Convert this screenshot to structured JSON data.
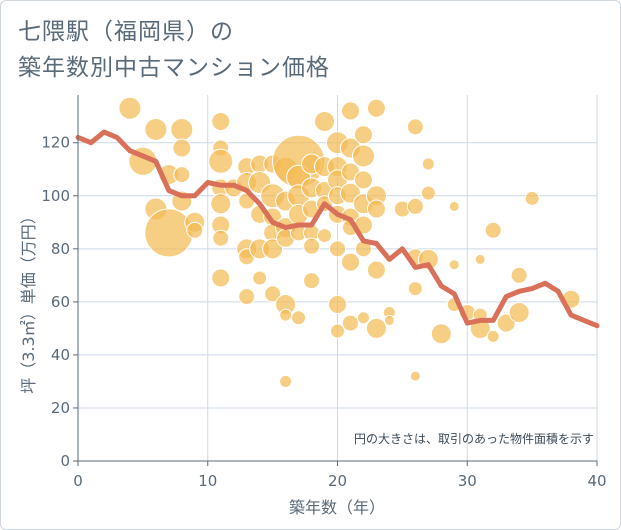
{
  "header": {
    "title_line1": "七隈駅（福岡県）の",
    "title_line2": "築年数別中古マンション価格"
  },
  "chart_data": {
    "type": "scatter",
    "title": "七隈駅（福岡県）の 築年数別中古マンション価格",
    "xlabel": "築年数（年）",
    "ylabel": "坪（3.3㎡）単価（万円）",
    "xlim": [
      0,
      40
    ],
    "ylim": [
      0,
      138
    ],
    "xticks": [
      0,
      10,
      20,
      30,
      40
    ],
    "yticks": [
      0,
      20,
      40,
      60,
      80,
      100,
      120
    ],
    "grid": true,
    "note": "円の大きさは、取引のあった物件面積を示す",
    "colors": {
      "bubble": "#f3bb55",
      "line": "#d9705a",
      "grid": "#ccd9e6",
      "axis": "#5a6a78"
    },
    "bubbles": [
      {
        "x": 4,
        "y": 133,
        "r": 11
      },
      {
        "x": 5,
        "y": 113,
        "r": 14
      },
      {
        "x": 6,
        "y": 125,
        "r": 11
      },
      {
        "x": 6,
        "y": 95,
        "r": 11
      },
      {
        "x": 7,
        "y": 86,
        "r": 24
      },
      {
        "x": 7,
        "y": 108,
        "r": 10
      },
      {
        "x": 8,
        "y": 125,
        "r": 11
      },
      {
        "x": 8,
        "y": 118,
        "r": 9
      },
      {
        "x": 8,
        "y": 108,
        "r": 8
      },
      {
        "x": 8,
        "y": 98,
        "r": 10
      },
      {
        "x": 9,
        "y": 90,
        "r": 10
      },
      {
        "x": 9,
        "y": 87,
        "r": 8
      },
      {
        "x": 11,
        "y": 128,
        "r": 9
      },
      {
        "x": 11,
        "y": 118,
        "r": 8
      },
      {
        "x": 11,
        "y": 113,
        "r": 12
      },
      {
        "x": 11,
        "y": 103,
        "r": 9
      },
      {
        "x": 11,
        "y": 97,
        "r": 10
      },
      {
        "x": 11,
        "y": 89,
        "r": 9
      },
      {
        "x": 11,
        "y": 84,
        "r": 8
      },
      {
        "x": 11,
        "y": 69,
        "r": 9
      },
      {
        "x": 12,
        "y": 103,
        "r": 9
      },
      {
        "x": 13,
        "y": 111,
        "r": 9
      },
      {
        "x": 13,
        "y": 105,
        "r": 10
      },
      {
        "x": 13,
        "y": 98,
        "r": 8
      },
      {
        "x": 13,
        "y": 80,
        "r": 10
      },
      {
        "x": 13,
        "y": 77,
        "r": 8
      },
      {
        "x": 13,
        "y": 62,
        "r": 8
      },
      {
        "x": 14,
        "y": 112,
        "r": 9
      },
      {
        "x": 14,
        "y": 105,
        "r": 11
      },
      {
        "x": 14,
        "y": 93,
        "r": 9
      },
      {
        "x": 14,
        "y": 80,
        "r": 10
      },
      {
        "x": 14,
        "y": 69,
        "r": 7
      },
      {
        "x": 15,
        "y": 112,
        "r": 9
      },
      {
        "x": 15,
        "y": 100,
        "r": 12
      },
      {
        "x": 15,
        "y": 92,
        "r": 9
      },
      {
        "x": 15,
        "y": 86,
        "r": 9
      },
      {
        "x": 15,
        "y": 80,
        "r": 10
      },
      {
        "x": 15,
        "y": 63,
        "r": 8
      },
      {
        "x": 16,
        "y": 110,
        "r": 12
      },
      {
        "x": 16,
        "y": 98,
        "r": 10
      },
      {
        "x": 16,
        "y": 88,
        "r": 10
      },
      {
        "x": 16,
        "y": 84,
        "r": 9
      },
      {
        "x": 16,
        "y": 59,
        "r": 10
      },
      {
        "x": 16,
        "y": 55,
        "r": 6
      },
      {
        "x": 16,
        "y": 30,
        "r": 6
      },
      {
        "x": 17,
        "y": 113,
        "r": 26
      },
      {
        "x": 17,
        "y": 107,
        "r": 12
      },
      {
        "x": 17,
        "y": 100,
        "r": 11
      },
      {
        "x": 17,
        "y": 93,
        "r": 10
      },
      {
        "x": 17,
        "y": 86,
        "r": 8
      },
      {
        "x": 17,
        "y": 54,
        "r": 7
      },
      {
        "x": 18,
        "y": 112,
        "r": 10
      },
      {
        "x": 18,
        "y": 103,
        "r": 10
      },
      {
        "x": 18,
        "y": 95,
        "r": 9
      },
      {
        "x": 18,
        "y": 86,
        "r": 8
      },
      {
        "x": 18,
        "y": 81,
        "r": 8
      },
      {
        "x": 18,
        "y": 68,
        "r": 8
      },
      {
        "x": 19,
        "y": 128,
        "r": 10
      },
      {
        "x": 19,
        "y": 111,
        "r": 10
      },
      {
        "x": 19,
        "y": 102,
        "r": 9
      },
      {
        "x": 19,
        "y": 97,
        "r": 8
      },
      {
        "x": 19,
        "y": 85,
        "r": 7
      },
      {
        "x": 20,
        "y": 120,
        "r": 11
      },
      {
        "x": 20,
        "y": 111,
        "r": 10
      },
      {
        "x": 20,
        "y": 106,
        "r": 10
      },
      {
        "x": 20,
        "y": 100,
        "r": 9
      },
      {
        "x": 20,
        "y": 93,
        "r": 9
      },
      {
        "x": 20,
        "y": 80,
        "r": 8
      },
      {
        "x": 20,
        "y": 59,
        "r": 9
      },
      {
        "x": 20,
        "y": 49,
        "r": 7
      },
      {
        "x": 21,
        "y": 132,
        "r": 9
      },
      {
        "x": 21,
        "y": 118,
        "r": 10
      },
      {
        "x": 21,
        "y": 109,
        "r": 9
      },
      {
        "x": 21,
        "y": 101,
        "r": 10
      },
      {
        "x": 21,
        "y": 92,
        "r": 9
      },
      {
        "x": 21,
        "y": 88,
        "r": 8
      },
      {
        "x": 21,
        "y": 75,
        "r": 9
      },
      {
        "x": 21,
        "y": 52,
        "r": 8
      },
      {
        "x": 22,
        "y": 123,
        "r": 9
      },
      {
        "x": 22,
        "y": 115,
        "r": 11
      },
      {
        "x": 22,
        "y": 106,
        "r": 9
      },
      {
        "x": 22,
        "y": 97,
        "r": 10
      },
      {
        "x": 22,
        "y": 89,
        "r": 9
      },
      {
        "x": 22,
        "y": 80,
        "r": 8
      },
      {
        "x": 22,
        "y": 54,
        "r": 6
      },
      {
        "x": 23,
        "y": 133,
        "r": 9
      },
      {
        "x": 23,
        "y": 100,
        "r": 10
      },
      {
        "x": 23,
        "y": 95,
        "r": 9
      },
      {
        "x": 23,
        "y": 72,
        "r": 9
      },
      {
        "x": 23,
        "y": 50,
        "r": 10
      },
      {
        "x": 24,
        "y": 56,
        "r": 6
      },
      {
        "x": 24,
        "y": 53,
        "r": 5
      },
      {
        "x": 25,
        "y": 95,
        "r": 8
      },
      {
        "x": 26,
        "y": 126,
        "r": 8
      },
      {
        "x": 26,
        "y": 96,
        "r": 8
      },
      {
        "x": 26,
        "y": 77,
        "r": 8
      },
      {
        "x": 26,
        "y": 65,
        "r": 7
      },
      {
        "x": 26,
        "y": 32,
        "r": 5
      },
      {
        "x": 27,
        "y": 112,
        "r": 6
      },
      {
        "x": 27,
        "y": 101,
        "r": 7
      },
      {
        "x": 27,
        "y": 76,
        "r": 10
      },
      {
        "x": 28,
        "y": 48,
        "r": 10
      },
      {
        "x": 29,
        "y": 96,
        "r": 5
      },
      {
        "x": 29,
        "y": 74,
        "r": 5
      },
      {
        "x": 29,
        "y": 59,
        "r": 7
      },
      {
        "x": 30,
        "y": 56,
        "r": 8
      },
      {
        "x": 31,
        "y": 76,
        "r": 5
      },
      {
        "x": 31,
        "y": 55,
        "r": 7
      },
      {
        "x": 31,
        "y": 50,
        "r": 10
      },
      {
        "x": 32,
        "y": 87,
        "r": 8
      },
      {
        "x": 32,
        "y": 47,
        "r": 6
      },
      {
        "x": 33,
        "y": 52,
        "r": 9
      },
      {
        "x": 34,
        "y": 70,
        "r": 8
      },
      {
        "x": 34,
        "y": 56,
        "r": 10
      },
      {
        "x": 35,
        "y": 99,
        "r": 7
      },
      {
        "x": 38,
        "y": 61,
        "r": 9
      }
    ],
    "trend": {
      "x": [
        0,
        1,
        2,
        3,
        4,
        5,
        6,
        7,
        8,
        9,
        10,
        11,
        12,
        13,
        14,
        15,
        16,
        17,
        18,
        19,
        20,
        21,
        22,
        23,
        24,
        25,
        26,
        27,
        28,
        29,
        30,
        31,
        32,
        33,
        34,
        35,
        36,
        37,
        38,
        39,
        40
      ],
      "y": [
        122,
        120,
        124,
        122,
        117,
        115,
        113,
        102,
        100,
        100,
        105,
        104,
        104,
        102,
        97,
        90,
        88,
        89,
        89,
        97,
        93,
        91,
        83,
        82,
        76,
        80,
        73,
        74,
        66,
        63,
        52,
        53,
        53,
        62,
        64,
        65,
        67,
        64,
        55,
        53,
        51
      ]
    }
  }
}
